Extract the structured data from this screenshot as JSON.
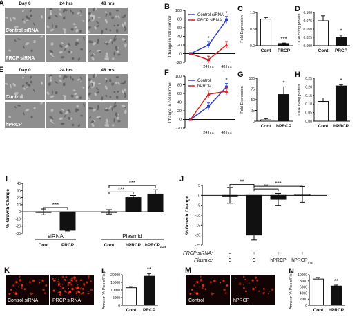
{
  "colors": {
    "blue": "#2b3fc4",
    "red": "#d42020",
    "black": "#111111",
    "micro_bg": "#8e8e8e",
    "fluor_bg": "#120404",
    "fluor_dot": "#ff3a1a"
  },
  "panels": {
    "A": {
      "letter": "A",
      "cols": [
        "Day 0",
        "24 hrs",
        "48 hrs"
      ],
      "rows": [
        "Control siRNA",
        "PRCP siRNA"
      ]
    },
    "E": {
      "letter": "E",
      "cols": [
        "Day 0",
        "24 hrs",
        "48 hrs"
      ],
      "rows": [
        "Control",
        "hPRCP"
      ]
    },
    "K": {
      "letter": "K",
      "labels": [
        "Control siRNA",
        "PRCP siRNA"
      ]
    },
    "M": {
      "letter": "M",
      "labels": [
        "Control",
        "hPRCP"
      ]
    }
  },
  "chart_data": [
    {
      "id": "B",
      "type": "line",
      "ylabel": "Change in cell number",
      "x": [
        "0",
        "24 hrs",
        "48 hrs"
      ],
      "series": [
        {
          "name": "Control siRNA",
          "values": [
            0,
            20,
            78
          ],
          "color": "blue"
        },
        {
          "name": "PRCP siRNA",
          "values": [
            0,
            -14,
            20
          ],
          "color": "red"
        }
      ],
      "ylim": [
        -20,
        100
      ],
      "legend": "top-left",
      "annotations": [
        "*",
        "*"
      ]
    },
    {
      "id": "C",
      "type": "bar",
      "ylabel": "Fold Expression",
      "categories": [
        "Cont",
        "PRCP"
      ],
      "values": [
        1.0,
        0.08
      ],
      "errors": [
        0.06,
        0.02
      ],
      "fills": [
        "white",
        "black"
      ],
      "ylim": [
        0,
        1.25
      ],
      "yticks": [
        "0.0",
        "0.5",
        "1.0"
      ],
      "annotations": [
        "",
        "***"
      ]
    },
    {
      "id": "D",
      "type": "bar",
      "ylabel": "OD405/mg protein",
      "categories": [
        "Cont",
        "PRCP"
      ],
      "values": [
        0.075,
        0.025
      ],
      "errors": [
        0.015,
        0.007
      ],
      "fills": [
        "white",
        "black"
      ],
      "ylim": [
        0,
        0.1
      ],
      "yticks": [
        "0.000",
        "0.025",
        "0.050",
        "0.075",
        "0.100"
      ],
      "annotations": [
        "",
        "*"
      ]
    },
    {
      "id": "F",
      "type": "line",
      "ylabel": "Change in cell number",
      "x": [
        "0",
        "24 hrs",
        "48 hrs"
      ],
      "series": [
        {
          "name": "Control",
          "values": [
            0,
            30,
            75
          ],
          "color": "blue"
        },
        {
          "name": "hPRCP",
          "values": [
            0,
            58,
            65
          ],
          "color": "red"
        }
      ],
      "ylim": [
        -20,
        100
      ],
      "legend": "top-left",
      "annotations": [
        "*"
      ]
    },
    {
      "id": "G",
      "type": "bar",
      "ylabel": "Fold Expression",
      "categories": [
        "Cont",
        "hPRCP"
      ],
      "values": [
        3,
        62
      ],
      "errors": [
        3,
        18
      ],
      "fills": [
        "white",
        "black"
      ],
      "ylim": [
        0,
        100
      ],
      "yticks": [
        "0",
        "25",
        "50",
        "75",
        "100"
      ],
      "annotations": [
        "",
        "*"
      ]
    },
    {
      "id": "H",
      "type": "bar",
      "ylabel": "OD405/mg protein",
      "categories": [
        "Cont",
        "hPRCP"
      ],
      "values": [
        0.115,
        0.205
      ],
      "errors": [
        0.02,
        0.008
      ],
      "fills": [
        "white",
        "black"
      ],
      "ylim": [
        0,
        0.25
      ],
      "yticks": [
        "0.00",
        "0.05",
        "0.10",
        "0.15",
        "0.20",
        "0.25"
      ],
      "annotations": [
        "",
        "*"
      ]
    },
    {
      "id": "I",
      "type": "bar",
      "ylabel": "% Growth Change",
      "categories": [
        "Cont",
        "PRCP",
        "Cont",
        "hPRCP",
        "hPRCP mut"
      ],
      "groups": [
        "siRNA",
        "Plasmid"
      ],
      "values": [
        0,
        -26,
        0,
        20,
        25
      ],
      "errors": [
        4,
        1,
        3,
        3,
        6
      ],
      "fills": [
        "white",
        "black",
        "white",
        "black",
        "black"
      ],
      "ylim": [
        -30,
        40
      ],
      "yticks": [
        "-30",
        "-20",
        "-10",
        "0",
        "10",
        "20",
        "30",
        "40"
      ],
      "annotations": [
        "***",
        "***",
        "***"
      ]
    },
    {
      "id": "J",
      "type": "bar",
      "ylabel": "% Growth Change",
      "rowlabels": [
        "PRCP siRNA:",
        "Plasmid:"
      ],
      "rows": [
        [
          "–",
          "+",
          "+",
          "+"
        ],
        [
          "C",
          "C",
          "hPRCP",
          "hPRCP mut"
        ]
      ],
      "values": [
        0,
        -20,
        -2,
        0.5
      ],
      "errors": [
        4,
        2.5,
        3,
        4
      ],
      "fills": [
        "white",
        "black",
        "black",
        "white"
      ],
      "ylim": [
        -25,
        5
      ],
      "yticks": [
        "-25",
        "-20",
        "-15",
        "-10",
        "-5",
        "0",
        "5"
      ],
      "annotations": [
        "**",
        "**",
        "***"
      ]
    },
    {
      "id": "L",
      "type": "bar",
      "ylabel": "Annexin V: Pixels/Field",
      "categories": [
        "Cont",
        "PRCP"
      ],
      "values": [
        11500,
        19000
      ],
      "errors": [
        700,
        1800
      ],
      "fills": [
        "white",
        "black"
      ],
      "ylim": [
        0,
        20000
      ],
      "yticks": [
        "0",
        "5000",
        "10000",
        "15000",
        "20000"
      ],
      "annotations": [
        "",
        "**"
      ]
    },
    {
      "id": "N",
      "type": "bar",
      "ylabel": "Annexin V: Pixels/Field",
      "categories": [
        "Cont",
        "hPRCP"
      ],
      "values": [
        8600,
        6300
      ],
      "errors": [
        500,
        300
      ],
      "fills": [
        "white",
        "black"
      ],
      "ylim": [
        0,
        10000
      ],
      "yticks": [
        "0",
        "2000",
        "4000",
        "6000",
        "8000",
        "10000"
      ],
      "annotations": [
        "",
        "**"
      ]
    }
  ]
}
